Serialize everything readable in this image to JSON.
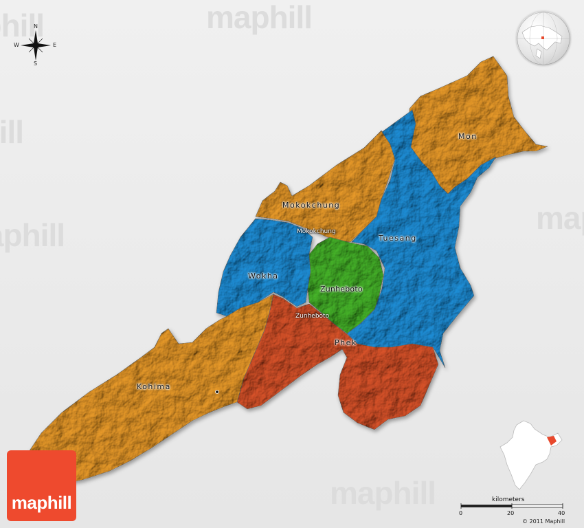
{
  "watermark": {
    "text": "maphill"
  },
  "compass": {
    "north": "N",
    "south": "S",
    "east": "E",
    "west": "W"
  },
  "colors": {
    "orange": "#e89a2a",
    "blue": "#1f8fd8",
    "green": "#46b42a",
    "red": "#d9532a",
    "logo": "#ee4a2e",
    "background": "#ececec"
  },
  "regions": [
    {
      "name": "Mon",
      "color": "orange"
    },
    {
      "name": "Mokokchung",
      "color": "orange"
    },
    {
      "name": "Tuesang",
      "color": "blue"
    },
    {
      "name": "Wokha",
      "color": "blue"
    },
    {
      "name": "Zunheboto",
      "color": "green"
    },
    {
      "name": "Phek",
      "color": "red"
    },
    {
      "name": "Kohima",
      "color": "orange"
    }
  ],
  "towns": [
    {
      "name": "Mokokchung"
    },
    {
      "name": "Zunheboto"
    }
  ],
  "locator_icons": [
    "globe-locator-icon",
    "india-locator-icon"
  ],
  "logo": {
    "text": "maphill"
  },
  "scale": {
    "title": "kilometers",
    "ticks": [
      "0",
      "20",
      "40"
    ]
  },
  "copyright": "© 2011 Maphill"
}
